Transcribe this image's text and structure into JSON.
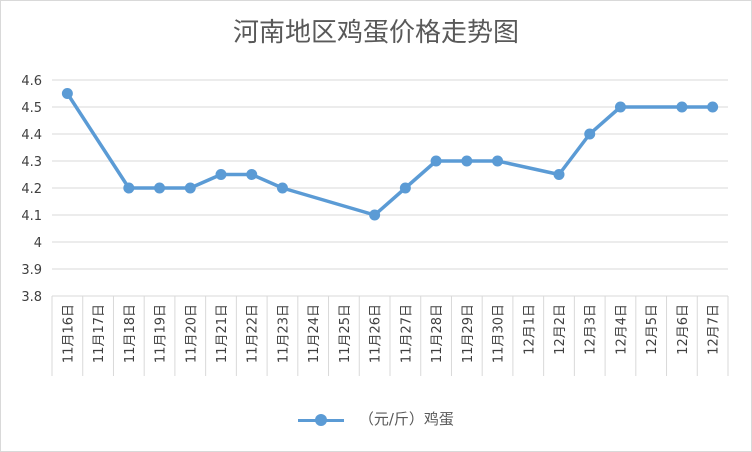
{
  "chart_data": {
    "type": "line",
    "title": "河南地区鸡蛋价格走势图",
    "categories": [
      "11月16日",
      "11月17日",
      "11月18日",
      "11月19日",
      "11月20日",
      "11月21日",
      "11月22日",
      "11月23日",
      "11月24日",
      "11月25日",
      "11月26日",
      "11月27日",
      "11月28日",
      "11月29日",
      "11月30日",
      "12月1日",
      "12月2日",
      "12月3日",
      "12月4日",
      "12月5日",
      "12月6日",
      "12月7日"
    ],
    "series": [
      {
        "name": "（元/斤）鸡蛋",
        "values": [
          4.55,
          null,
          4.2,
          4.2,
          4.2,
          4.25,
          4.25,
          4.2,
          null,
          null,
          4.1,
          4.2,
          4.3,
          4.3,
          4.3,
          null,
          4.25,
          4.4,
          4.5,
          null,
          4.5,
          4.5
        ],
        "color": "#5b9bd5"
      }
    ],
    "yticks": [
      "3.8",
      "3.9",
      "4",
      "4.1",
      "4.2",
      "4.3",
      "4.4",
      "4.5",
      "4.6"
    ],
    "ylim": [
      3.8,
      4.6
    ],
    "grid": true,
    "legend": "bottom",
    "xlabel": "",
    "ylabel": ""
  }
}
